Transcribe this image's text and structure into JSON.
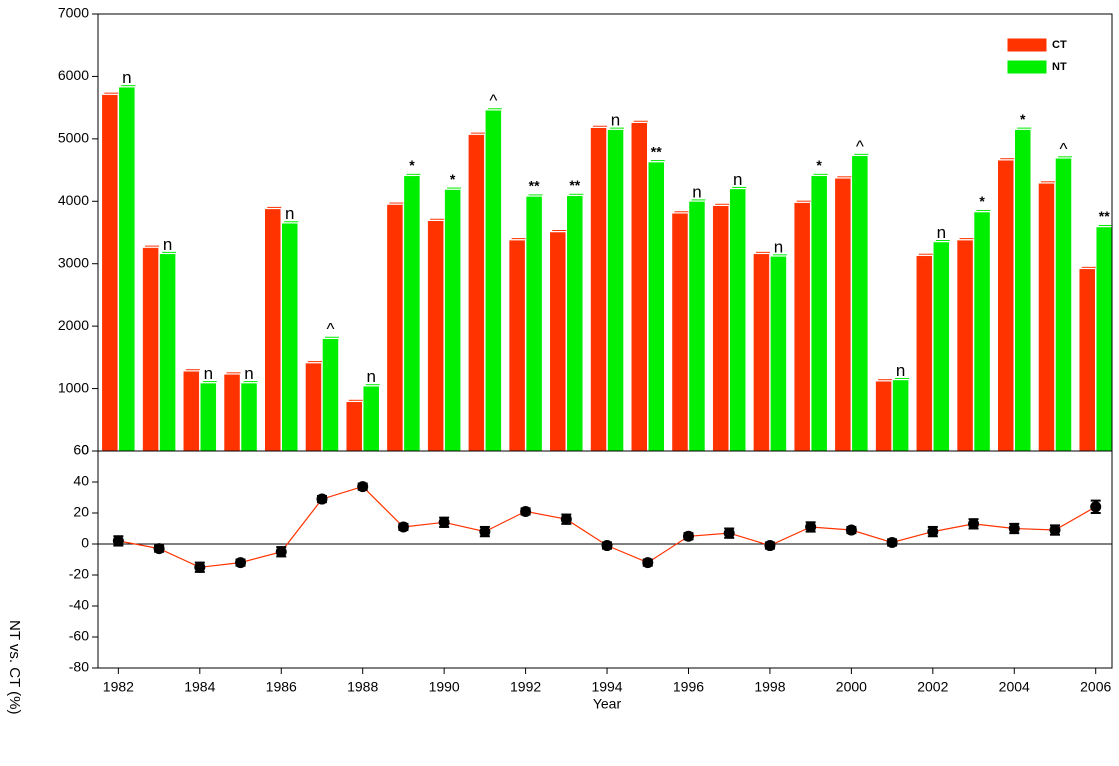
{
  "chart_data": [
    {
      "type": "bar",
      "x": [
        1982,
        1983,
        1984,
        1985,
        1986,
        1987,
        1988,
        1989,
        1990,
        1991,
        1992,
        1993,
        1994,
        1995,
        1996,
        1997,
        1998,
        1999,
        2000,
        2001,
        2002,
        2003,
        2004,
        2005,
        2006
      ],
      "xlim": [
        1981.5,
        2006.4
      ],
      "series": [
        {
          "name": "CT",
          "color": "#ff3300",
          "values": [
            5700,
            3250,
            1270,
            1220,
            3870,
            1400,
            780,
            3940,
            3680,
            5060,
            3370,
            3500,
            5170,
            5250,
            3800,
            3920,
            3150,
            3970,
            4360,
            1110,
            3120,
            3370,
            4650,
            4280,
            2910
          ]
        },
        {
          "name": "NT",
          "color": "#00ee00",
          "values": [
            5820,
            3150,
            1080,
            1080,
            3640,
            1790,
            1030,
            4400,
            4180,
            5450,
            4070,
            4080,
            5140,
            4620,
            3990,
            4190,
            3110,
            4400,
            4720,
            1130,
            3340,
            3820,
            5140,
            4680,
            3580
          ]
        }
      ],
      "annotations": [
        "n",
        "n",
        "n",
        "n",
        "n",
        "^",
        "n",
        "*",
        "*",
        "^",
        "**",
        "**",
        "n",
        "**",
        "n",
        "n",
        "n",
        "*",
        "^",
        "n",
        "n",
        "*",
        "*",
        "^",
        "**"
      ],
      "ylim": [
        0,
        7000
      ],
      "yticks": [
        0,
        1000,
        2000,
        3000,
        4000,
        5000,
        6000,
        7000
      ],
      "legend": "top-right"
    },
    {
      "type": "line",
      "x": [
        1982,
        1983,
        1984,
        1985,
        1986,
        1987,
        1988,
        1989,
        1990,
        1991,
        1992,
        1993,
        1994,
        1995,
        1996,
        1997,
        1998,
        1999,
        2000,
        2001,
        2002,
        2003,
        2004,
        2005,
        2006
      ],
      "xlim": [
        1981.5,
        2006.4
      ],
      "xticks": [
        1982,
        1984,
        1986,
        1988,
        1990,
        1992,
        1994,
        1996,
        1998,
        2000,
        2002,
        2004,
        2006
      ],
      "xlabel": "Year",
      "ylabel": "NT vs. CT (%)",
      "values": [
        2,
        -3,
        -15,
        -12,
        -5,
        29,
        37,
        11,
        14,
        8,
        21,
        16,
        -1,
        -12,
        5,
        7,
        -1,
        11,
        9,
        1,
        8,
        13,
        10,
        9,
        24
      ],
      "errors": [
        3,
        2,
        3,
        2,
        3,
        2,
        2,
        2,
        3,
        3,
        2,
        3,
        2,
        2,
        2,
        3,
        2,
        3,
        2,
        2,
        3,
        3,
        3,
        3,
        4
      ],
      "color": "#ff3300",
      "marker_color": "#000000",
      "ylim": [
        -80,
        60
      ],
      "yticks": [
        -80,
        -60,
        -40,
        -20,
        0,
        20,
        40,
        60
      ],
      "zero_line": true
    }
  ]
}
